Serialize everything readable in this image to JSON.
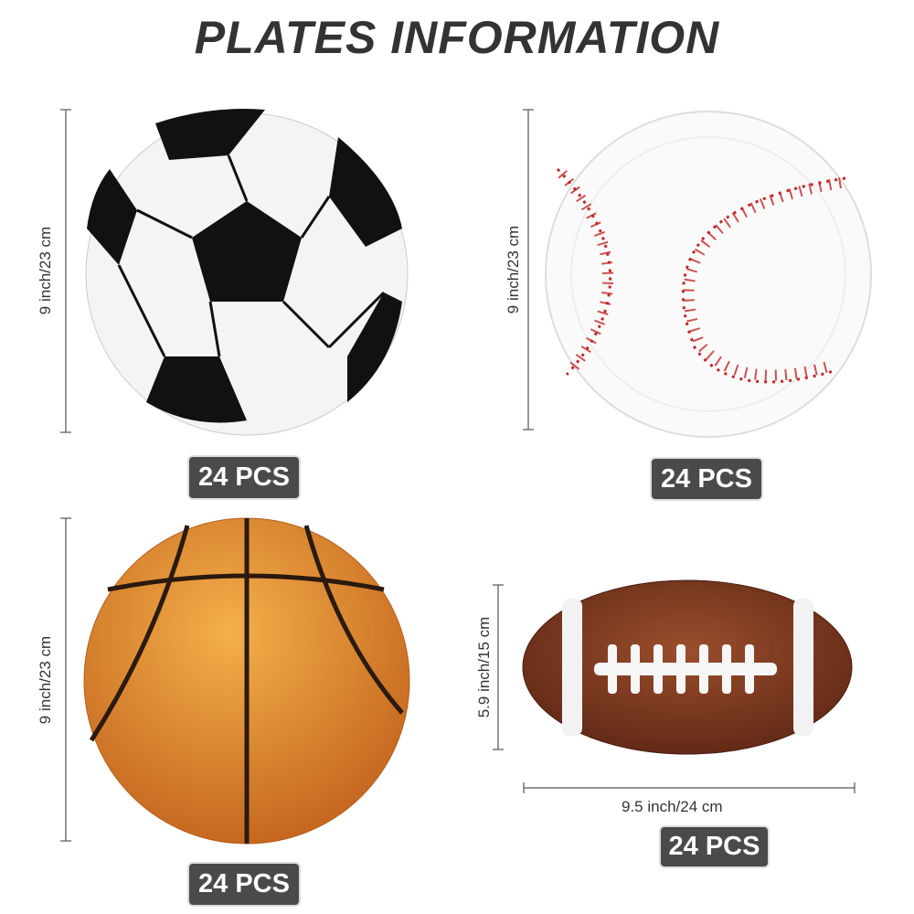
{
  "title": "PLATES INFORMATION",
  "plates": [
    {
      "type": "soccer",
      "size_label": "9 inch/23 cm",
      "quantity": "24 PCS"
    },
    {
      "type": "baseball",
      "size_label": "9 inch/23 cm",
      "quantity": "24 PCS"
    },
    {
      "type": "basketball",
      "size_label": "9 inch/23 cm",
      "quantity": "24 PCS"
    },
    {
      "type": "football",
      "size_label": "5.9 inch/15 cm",
      "width_label": "9.5 inch/24 cm",
      "quantity": "24 PCS"
    }
  ],
  "colors": {
    "badge": "#4a4a4a",
    "title": "#333333",
    "basketball": "#d8812f",
    "football": "#7a3a22",
    "stitch": "#c0282a"
  }
}
